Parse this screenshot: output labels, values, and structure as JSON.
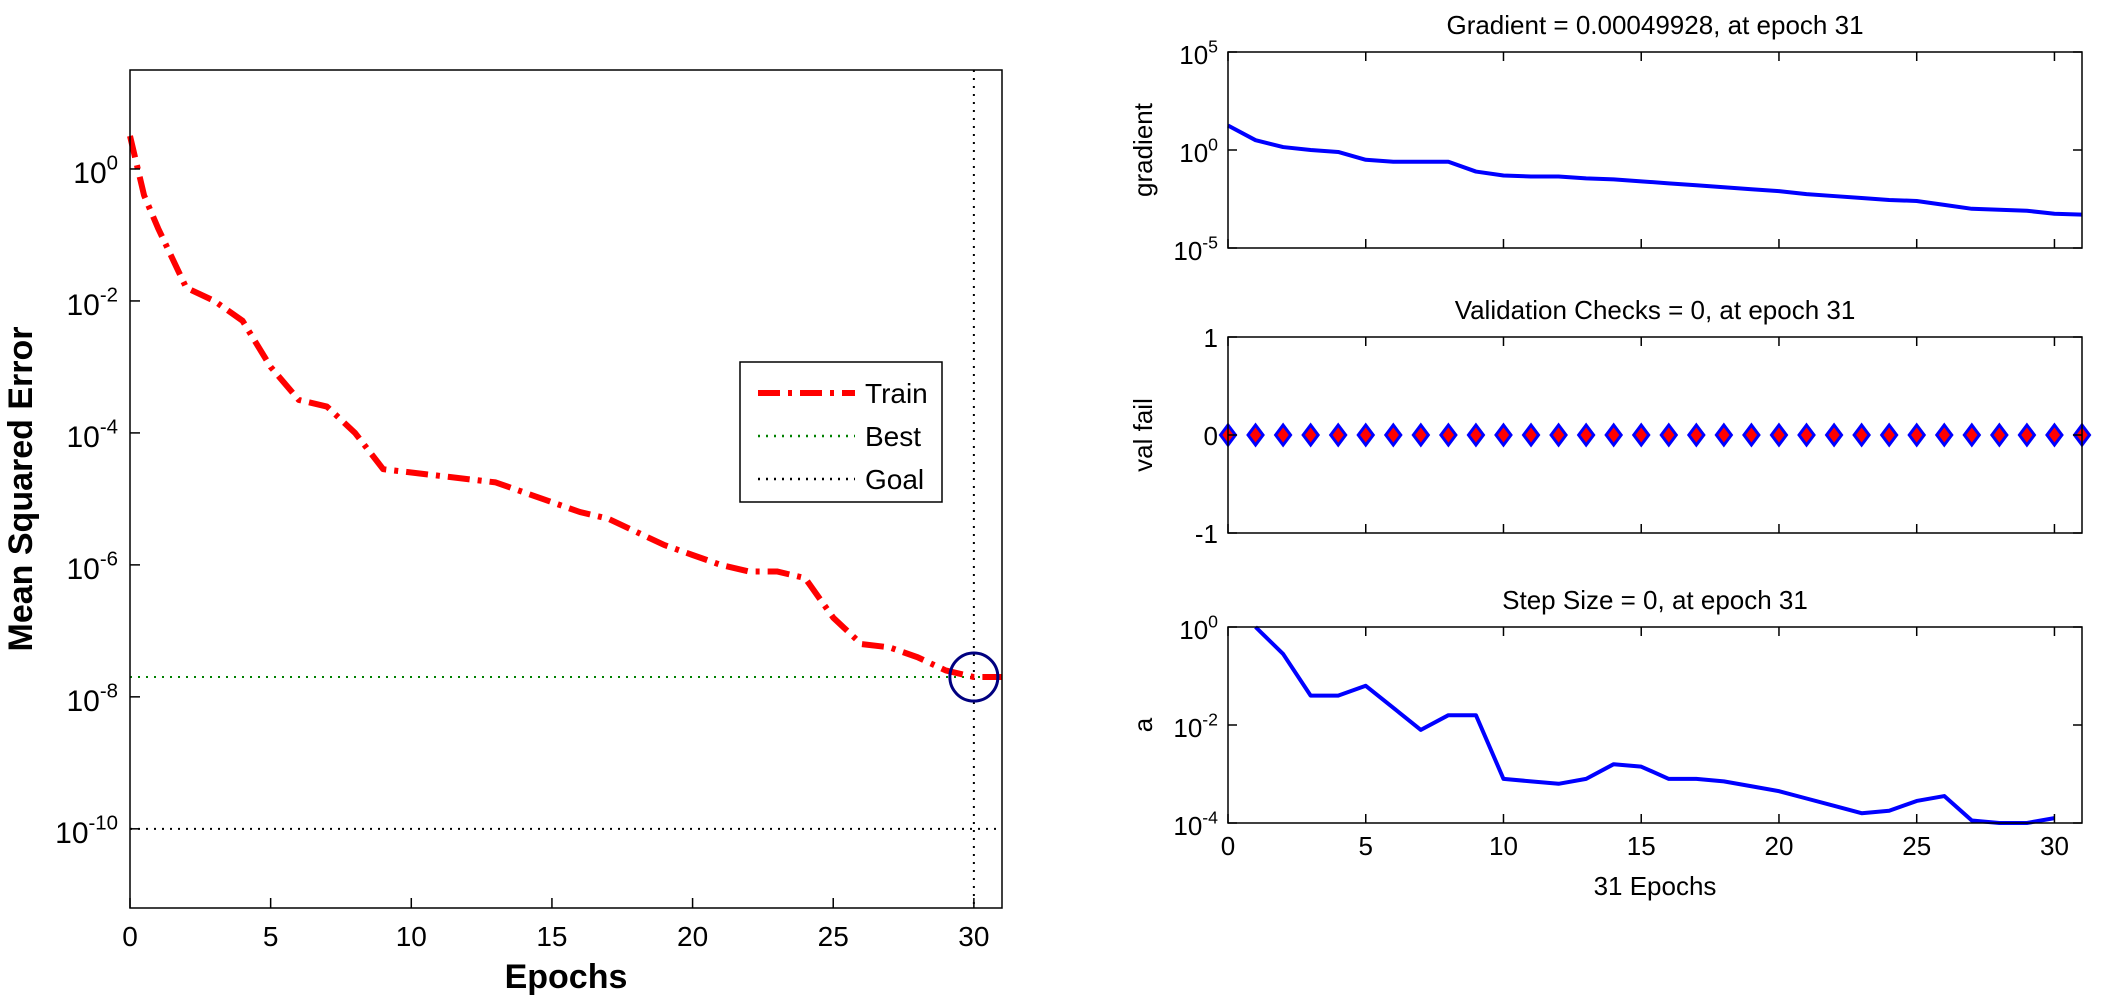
{
  "chart_data": [
    {
      "id": "mse",
      "type": "line",
      "title": "",
      "xlabel": "Epochs",
      "ylabel": "Mean Squared Error",
      "xlim": [
        0,
        31
      ],
      "ylim_log10": [
        -11.2,
        1.5
      ],
      "y_scale": "log",
      "x_ticks": [
        0,
        5,
        10,
        15,
        20,
        25,
        30
      ],
      "x_tick_labels": [
        "0",
        "5",
        "10",
        "15",
        "20",
        "25",
        "30"
      ],
      "y_ticks_log10": [
        0,
        -2,
        -4,
        -6,
        -8,
        -10
      ],
      "y_tick_labels": [
        {
          "base": "10",
          "exp": "0"
        },
        {
          "base": "10",
          "exp": "-2"
        },
        {
          "base": "10",
          "exp": "-4"
        },
        {
          "base": "10",
          "exp": "-6"
        },
        {
          "base": "10",
          "exp": "-8"
        },
        {
          "base": "10",
          "exp": "-10"
        }
      ],
      "grid": false,
      "series": [
        {
          "name": "Train",
          "style": "dash-dot",
          "color": "#ff0000",
          "x": [
            0,
            0.5,
            1,
            2,
            3,
            4,
            5,
            6,
            7,
            8,
            9,
            10,
            11,
            12,
            13,
            14,
            15,
            16,
            17,
            18,
            19,
            20,
            21,
            22,
            23,
            24,
            25,
            26,
            27,
            28,
            29,
            30,
            31
          ],
          "y_log10": [
            0.5,
            -0.4,
            -0.9,
            -1.8,
            -2.0,
            -2.3,
            -3.0,
            -3.5,
            -3.6,
            -4.0,
            -4.55,
            -4.6,
            -4.65,
            -4.7,
            -4.75,
            -4.9,
            -5.05,
            -5.2,
            -5.3,
            -5.5,
            -5.7,
            -5.85,
            -6.0,
            -6.1,
            -6.1,
            -6.2,
            -6.8,
            -7.2,
            -7.25,
            -7.4,
            -7.6,
            -7.7,
            -7.7
          ]
        },
        {
          "name": "Best",
          "style": "dotted",
          "color": "#008000",
          "y_log10": -7.7
        },
        {
          "name": "Goal",
          "style": "dotted",
          "color": "#000000",
          "y_log10": -10.0
        }
      ],
      "best_epoch": 30,
      "best_marker_color": "#000080",
      "legend": {
        "placement": "right",
        "entries": [
          "Train",
          "Best",
          "Goal"
        ]
      }
    },
    {
      "id": "gradient",
      "type": "line",
      "title": "Gradient = 0.00049928, at epoch 31",
      "xlabel": "",
      "ylabel": "gradient",
      "xlim": [
        0,
        31
      ],
      "y_scale": "log",
      "ylim_log10": [
        -5,
        5
      ],
      "x_ticks": [
        0,
        5,
        10,
        15,
        20,
        25,
        30
      ],
      "y_ticks_log10": [
        5,
        0,
        -5
      ],
      "y_tick_labels": [
        {
          "base": "10",
          "exp": "5"
        },
        {
          "base": "10",
          "exp": "0"
        },
        {
          "base": "10",
          "exp": "-5"
        }
      ],
      "series": [
        {
          "name": "",
          "color": "#0000ff",
          "x": [
            0,
            1,
            2,
            3,
            4,
            5,
            6,
            7,
            8,
            9,
            10,
            11,
            12,
            13,
            14,
            15,
            16,
            17,
            18,
            19,
            20,
            21,
            22,
            23,
            24,
            25,
            26,
            27,
            28,
            29,
            30,
            31
          ],
          "y_log10": [
            1.25,
            0.5,
            0.15,
            0.0,
            -0.1,
            -0.5,
            -0.6,
            -0.6,
            -0.6,
            -1.1,
            -1.3,
            -1.35,
            -1.35,
            -1.45,
            -1.5,
            -1.6,
            -1.7,
            -1.8,
            -1.9,
            -2.0,
            -2.1,
            -2.25,
            -2.35,
            -2.45,
            -2.55,
            -2.6,
            -2.8,
            -3.0,
            -3.05,
            -3.1,
            -3.25,
            -3.3
          ]
        }
      ]
    },
    {
      "id": "valfail",
      "type": "scatter",
      "title": "Validation Checks = 0, at epoch 31",
      "xlabel": "",
      "ylabel": "val fail",
      "xlim": [
        0,
        31
      ],
      "ylim": [
        -1,
        1
      ],
      "x_ticks": [
        0,
        5,
        10,
        15,
        20,
        25,
        30
      ],
      "y_ticks": [
        -1,
        0,
        1
      ],
      "y_tick_labels": [
        "-1",
        "0",
        "1"
      ],
      "series": [
        {
          "name": "",
          "marker": "diamond",
          "color": "#0000ff",
          "fill": "#ff0000",
          "x": [
            0,
            1,
            2,
            3,
            4,
            5,
            6,
            7,
            8,
            9,
            10,
            11,
            12,
            13,
            14,
            15,
            16,
            17,
            18,
            19,
            20,
            21,
            22,
            23,
            24,
            25,
            26,
            27,
            28,
            29,
            30,
            31
          ],
          "y": [
            0,
            0,
            0,
            0,
            0,
            0,
            0,
            0,
            0,
            0,
            0,
            0,
            0,
            0,
            0,
            0,
            0,
            0,
            0,
            0,
            0,
            0,
            0,
            0,
            0,
            0,
            0,
            0,
            0,
            0,
            0,
            0
          ]
        }
      ]
    },
    {
      "id": "stepsize",
      "type": "line",
      "title": "Step Size = 0, at epoch 31",
      "xlabel": "31 Epochs",
      "ylabel": "a",
      "xlim": [
        0,
        31
      ],
      "y_scale": "log",
      "ylim_log10": [
        -4,
        0
      ],
      "x_ticks": [
        0,
        5,
        10,
        15,
        20,
        25,
        30
      ],
      "x_tick_labels": [
        "0",
        "5",
        "10",
        "15",
        "20",
        "25",
        "30"
      ],
      "y_ticks_log10": [
        0,
        -2,
        -4
      ],
      "y_tick_labels": [
        {
          "base": "10",
          "exp": "0"
        },
        {
          "base": "10",
          "exp": "-2"
        },
        {
          "base": "10",
          "exp": "-4"
        }
      ],
      "series": [
        {
          "name": "",
          "color": "#0000ff",
          "x": [
            1,
            2,
            3,
            4,
            5,
            6,
            7,
            8,
            9,
            10,
            11,
            12,
            13,
            14,
            15,
            16,
            17,
            18,
            19,
            20,
            21,
            22,
            23,
            24,
            25,
            26,
            27,
            28,
            29,
            30
          ],
          "y_log10": [
            0,
            -0.55,
            -1.4,
            -1.4,
            -1.2,
            -1.65,
            -2.1,
            -1.8,
            -1.8,
            -3.1,
            -3.15,
            -3.2,
            -3.1,
            -2.8,
            -2.85,
            -3.1,
            -3.1,
            -3.15,
            -3.25,
            -3.35,
            -3.5,
            -3.65,
            -3.8,
            -3.75,
            -3.55,
            -3.45,
            -3.95,
            -4.0,
            -4.0,
            -3.9
          ]
        }
      ]
    }
  ]
}
